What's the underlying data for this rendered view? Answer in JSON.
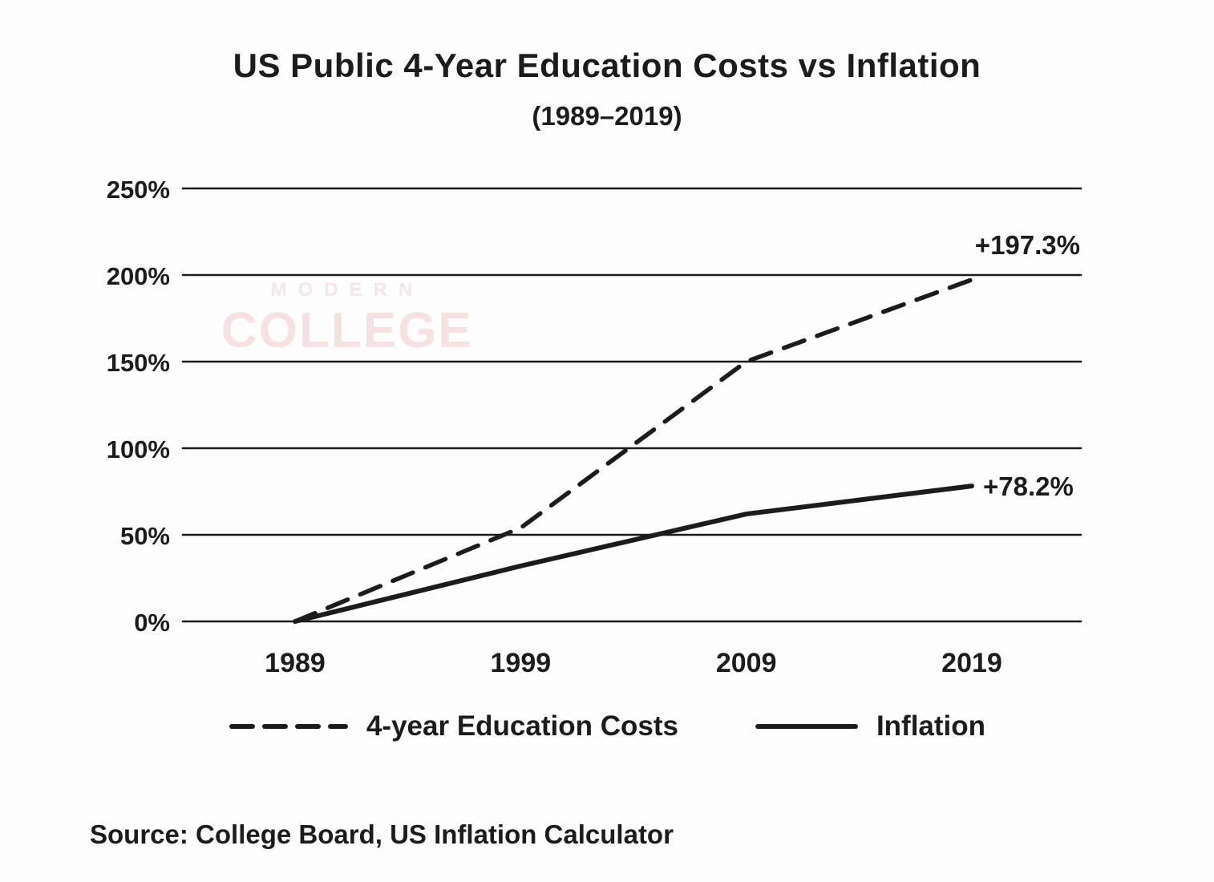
{
  "chart_data": {
    "type": "line",
    "title": "US Public 4-Year Education Costs vs Inflation",
    "subtitle": "(1989–2019)",
    "source": "Source: College Board, US Inflation Calculator",
    "x": [
      1989,
      1999,
      2009,
      2019
    ],
    "x_tick_labels": [
      "1989",
      "1999",
      "2009",
      "2019"
    ],
    "y_ticks": [
      0,
      50,
      100,
      150,
      200,
      250
    ],
    "y_tick_labels": [
      "0%",
      "50%",
      "100%",
      "150%",
      "200%",
      "250%"
    ],
    "ylim": [
      0,
      250
    ],
    "grid": "horizontal-only",
    "legend_position": "bottom",
    "line_color": "#1c1c1c",
    "series": [
      {
        "name": "4-year Education Costs",
        "style": "dashed",
        "values": [
          0,
          54,
          150,
          197.3
        ],
        "end_label": "+197.3%"
      },
      {
        "name": "Inflation",
        "style": "solid",
        "values": [
          0,
          32,
          62,
          78.2
        ],
        "end_label": "+78.2%"
      }
    ]
  },
  "watermark": {
    "line1": "MODERN",
    "line2": "COLLEGE",
    "color_line1": "#f3e7e7",
    "color_line2": "#f6e2e2"
  }
}
